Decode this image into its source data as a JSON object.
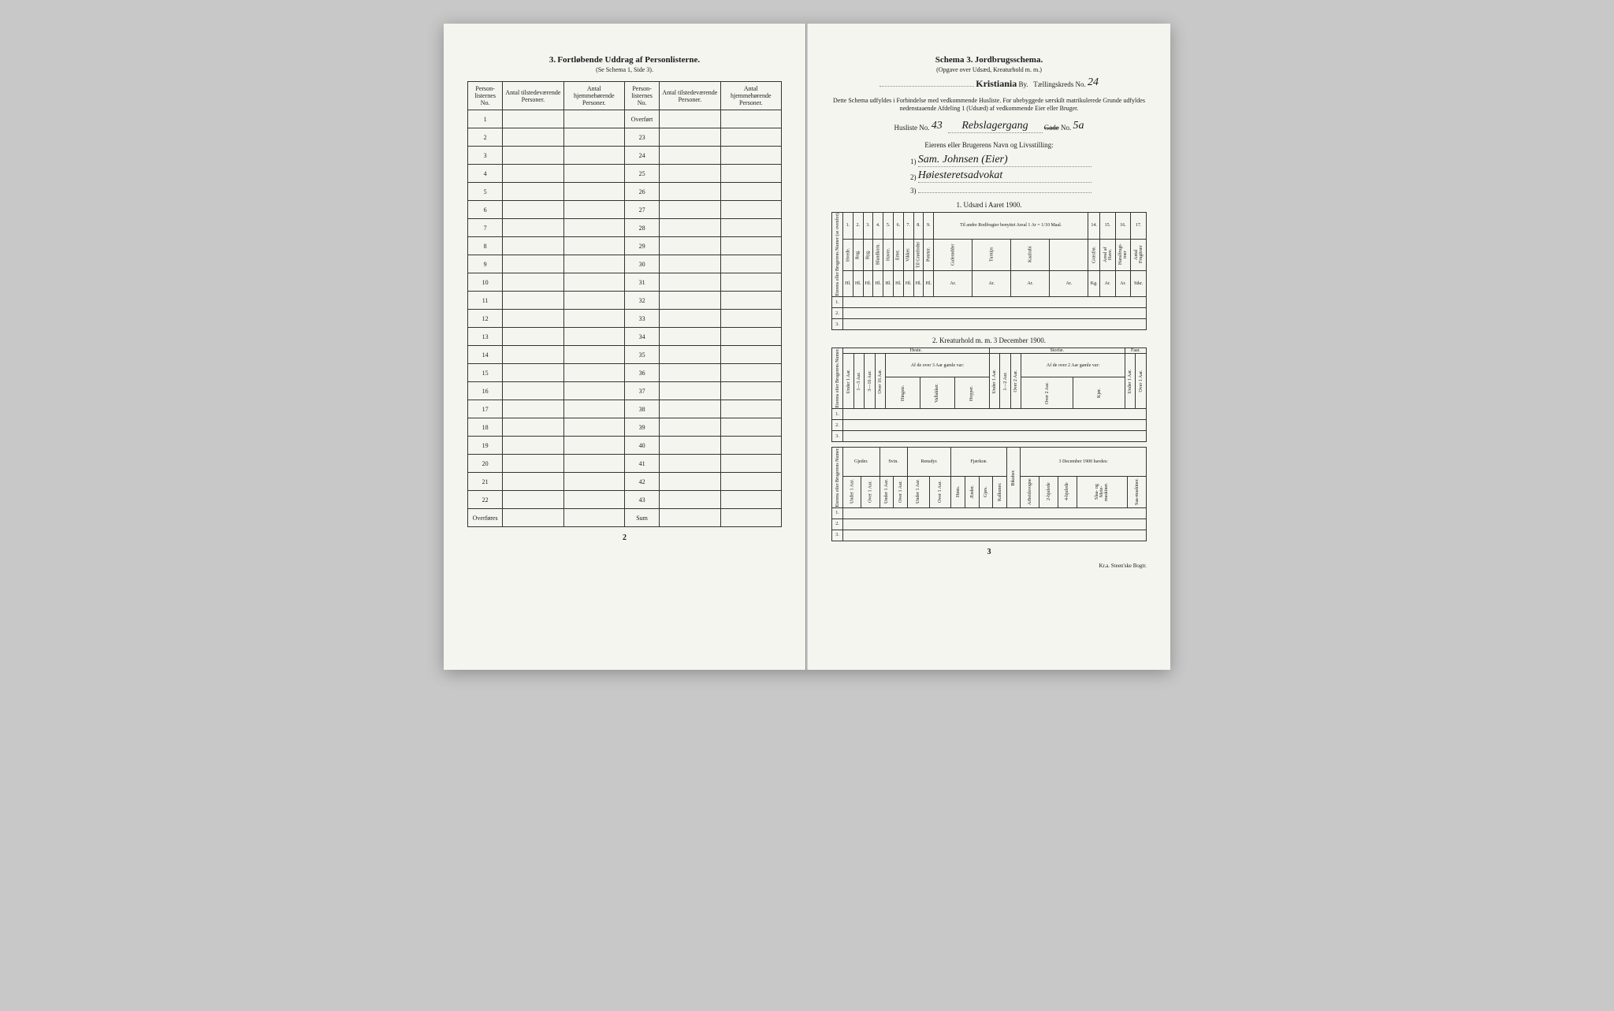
{
  "left": {
    "section_num": "3.",
    "title": "Fortløbende Uddrag af Personlisterne.",
    "subtitle": "(Se Schema 1, Side 3).",
    "headers": {
      "col1": "Person-listernes No.",
      "col2": "Antal tilstedeværende Personer.",
      "col3": "Antal hjemmehørende Personer.",
      "col4": "Person-listernes No.",
      "col5": "Antal tilstedeværende Personer.",
      "col6": "Antal hjemmehørende Personer."
    },
    "overfort": "Overført",
    "left_rows": [
      "1",
      "2",
      "3",
      "4",
      "5",
      "6",
      "7",
      "8",
      "9",
      "10",
      "11",
      "12",
      "13",
      "14",
      "15",
      "16",
      "17",
      "18",
      "19",
      "20",
      "21",
      "22"
    ],
    "right_rows": [
      "23",
      "24",
      "25",
      "26",
      "27",
      "28",
      "29",
      "30",
      "31",
      "32",
      "33",
      "34",
      "35",
      "36",
      "37",
      "38",
      "39",
      "40",
      "41",
      "42",
      "43"
    ],
    "overfores": "Overføres",
    "sum": "Sum",
    "page_num": "2"
  },
  "right": {
    "schema_label": "Schema 3.",
    "schema_title": "Jordbrugsschema.",
    "schema_sub": "(Opgave over Udsæd, Kreaturhold m. m.)",
    "city": "Kristiania",
    "by": "By.",
    "tkreds_label": "Tællingskreds No.",
    "tkreds_val": "24",
    "intro": "Dette Schema udfyldes i Forbindelse med vedkommende Husliste. For ubebyggede særskilt matrikulerede Grunde udfyldes nedenstaaende Afdeling 1 (Udsæd) af vedkommende Eier eller Bruger.",
    "husliste_label": "Husliste No.",
    "husliste_val": "43",
    "street_val": "Rebslagergang",
    "gade": "Gade",
    "gade_no_label": "No.",
    "gade_no_val": "5a",
    "owner_header": "Eierens eller Brugerens Navn og Livsstilling:",
    "owner1_num": "1)",
    "owner1_val": "Sam. Johnsen (Eier)",
    "owner2_num": "2)",
    "owner2_val": "Høiesteretsadvokat",
    "owner3_num": "3)",
    "section1_title": "1. Udsæd i Aaret 1900.",
    "crops": {
      "side": "Eierens eller Brugerens Numer (se ovenfor).",
      "nums": [
        "1.",
        "2.",
        "3.",
        "4.",
        "5.",
        "6.",
        "7.",
        "8.",
        "9.",
        "10.",
        "11.",
        "12.",
        "13.",
        "14.",
        "15.",
        "16.",
        "17."
      ],
      "labels": [
        "Hvede.",
        "Rug.",
        "Byg.",
        "Blandkorn.",
        "Havre.",
        "Erter.",
        "Vikker.",
        "Til Grønfoder",
        "Poteter.",
        "Gulerødder",
        "Turnips",
        "Kaalrabi",
        "",
        "Græsfrø.",
        "Areal af Have.",
        "Haralfrugt-trær",
        "Antal Frugttrær"
      ],
      "group_label": "Til andre Rodfrugter benyttet Areal 1 Ar = 1/10 Maal.",
      "units": [
        "Hl.",
        "Hl.",
        "Hl.",
        "Hl.",
        "Hl.",
        "Hl.",
        "Hl.",
        "Hl.",
        "Hl.",
        "Ar.",
        "Ar.",
        "Ar.",
        "Ar.",
        "Kg.",
        "Ar.",
        "Ar.",
        "Stkr."
      ],
      "rows": [
        "1.",
        "2.",
        "3."
      ]
    },
    "section2_title": "2. Kreaturhold m. m. 3 December 1900.",
    "livestock1": {
      "side": "Eierens eller Brugerens Numer.",
      "nums": [
        "1.",
        "2.",
        "3.",
        "4.",
        "5.",
        "6.",
        "7.",
        "8.",
        "9.",
        "10.",
        "11.",
        "12.",
        "13.",
        "14.",
        "15."
      ],
      "heste": "Heste.",
      "storfae": "Storfæ.",
      "faar": "Faar.",
      "cols": [
        "Under 1 Aar.",
        "1—3 Aar.",
        "3—16 Aar.",
        "Over 16 Aar.",
        "Hingste.",
        "Vallakker.",
        "Hopper.",
        "Under 1 Aar.",
        "1—2 Aar.",
        "Over 2 Aar.",
        "Over 2 Aar.",
        "Kjør.",
        "Under 1 Aar.",
        "Over 1 Aar."
      ],
      "af_over3": "Af de over 3 Aar gamle var:",
      "af_over2": "Af de over 2 Aar gamle var:",
      "rows": [
        "1.",
        "2.",
        "3."
      ]
    },
    "livestock2": {
      "side": "Eierens eller Brugerens Numer.",
      "nums": [
        "16.",
        "17.",
        "18.",
        "19.",
        "20.",
        "21.",
        "22.",
        "23.",
        "24.",
        "25.",
        "26.",
        "27.",
        "28.",
        "29.",
        "30.",
        "31."
      ],
      "gjeder": "Gjeder.",
      "svin": "Svin.",
      "rensdyr": "Rensdyr.",
      "fjaerkrae": "Fjærkræ.",
      "dec_label": "3 December 1900 havdes:",
      "cols": [
        "Under 1 Aar.",
        "Over 1 Aar.",
        "Under 1 Aar.",
        "Over 1 Aar.",
        "Under 1 Aar.",
        "Over 1 Aar.",
        "Høns.",
        "Ænder.",
        "Gjæs.",
        "Kalkuner.",
        "Bikuber.",
        "Arbeidsvogne",
        "2-hjulede",
        "4-hjulede",
        "Slaa- og Meie-maskiner.",
        "Saa-maskiner."
      ],
      "arbeid_note": "(Hesvogne ikke medregnet)",
      "rows": [
        "1.",
        "2.",
        "3."
      ]
    },
    "page_num": "3",
    "printer": "Kr.a. Steen'ske Bogtr."
  }
}
